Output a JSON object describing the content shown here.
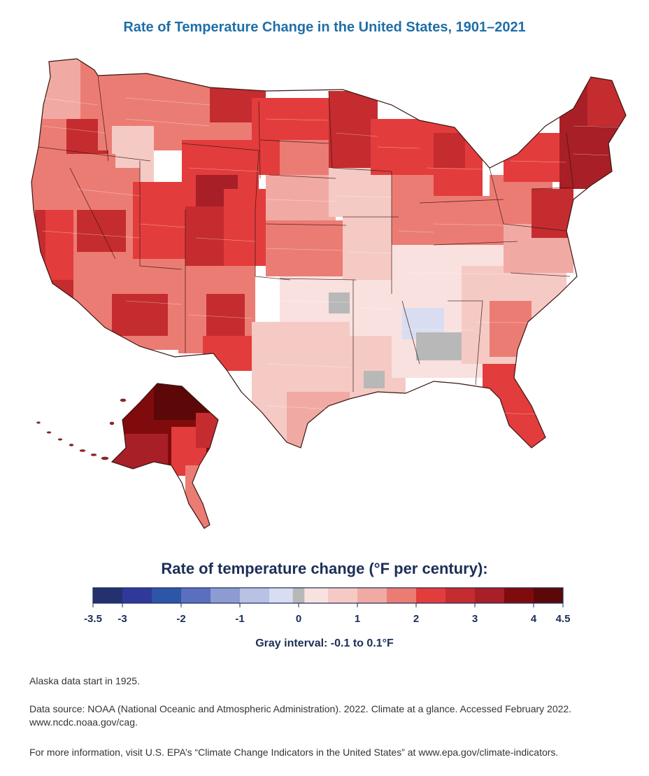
{
  "title": "Rate of Temperature Change in the United States, 1901–2021",
  "legend": {
    "title": "Rate of temperature change (°F per century):",
    "tick_labels": [
      "-3.5",
      "-3",
      "-2",
      "-1",
      "0",
      "1",
      "2",
      "3",
      "4",
      "4.5"
    ],
    "tick_values": [
      -3.5,
      -3,
      -2,
      -1,
      0,
      1,
      2,
      3,
      4,
      4.5
    ],
    "bins": [
      {
        "from": -3.5,
        "to": -3.0,
        "color": "#25306e"
      },
      {
        "from": -3.0,
        "to": -2.5,
        "color": "#30399a"
      },
      {
        "from": -2.5,
        "to": -2.0,
        "color": "#2d55a8"
      },
      {
        "from": -2.0,
        "to": -1.5,
        "color": "#5a6fbd"
      },
      {
        "from": -1.5,
        "to": -1.0,
        "color": "#8e9bd2"
      },
      {
        "from": -1.0,
        "to": -0.5,
        "color": "#b9c1e4"
      },
      {
        "from": -0.5,
        "to": -0.1,
        "color": "#d9ddf1"
      },
      {
        "from": -0.1,
        "to": 0.1,
        "color": "#b8b8b8"
      },
      {
        "from": 0.1,
        "to": 0.5,
        "color": "#f9e1df"
      },
      {
        "from": 0.5,
        "to": 1.0,
        "color": "#f5cac5"
      },
      {
        "from": 1.0,
        "to": 1.5,
        "color": "#f1aaa3"
      },
      {
        "from": 1.5,
        "to": 2.0,
        "color": "#eb7c74"
      },
      {
        "from": 2.0,
        "to": 2.5,
        "color": "#e33c3c"
      },
      {
        "from": 2.5,
        "to": 3.0,
        "color": "#c42c30"
      },
      {
        "from": 3.0,
        "to": 3.5,
        "color": "#a81f27"
      },
      {
        "from": 3.5,
        "to": 4.0,
        "color": "#800b0c"
      },
      {
        "from": 4.0,
        "to": 4.5,
        "color": "#5c0809"
      }
    ],
    "gray_interval": "Gray interval: -0.1 to 0.1°F"
  },
  "notes": {
    "alaska": "Alaska data start in 1925.",
    "source": "Data source: NOAA (National Oceanic and Atmospheric Administration). 2022. Climate at a glance. Accessed February 2022. www.ncdc.noaa.gov/cag.",
    "more_info": "For more information, visit U.S. EPA’s “Climate Change Indicators in the United States” at www.epa.gov/climate-indicators."
  },
  "map": {
    "region_rates": {
      "pacific_northwest": 2.2,
      "oregon_interior": 3.2,
      "california_coast": 3.1,
      "southwest": 2.8,
      "northern_rockies": 2.3,
      "colorado_plateau": 3.2,
      "great_plains": 1.2,
      "southern_plains": 0.7,
      "upper_midwest": 3.1,
      "great_lakes": 2.3,
      "ohio_valley": 0.5,
      "southeast": 0.6,
      "deep_south_interior": -0.3,
      "florida": 2.3,
      "mid_atlantic": 2.6,
      "new_england": 3.3,
      "alaska_interior": 4.3,
      "alaska_southeast": 2.3
    }
  }
}
